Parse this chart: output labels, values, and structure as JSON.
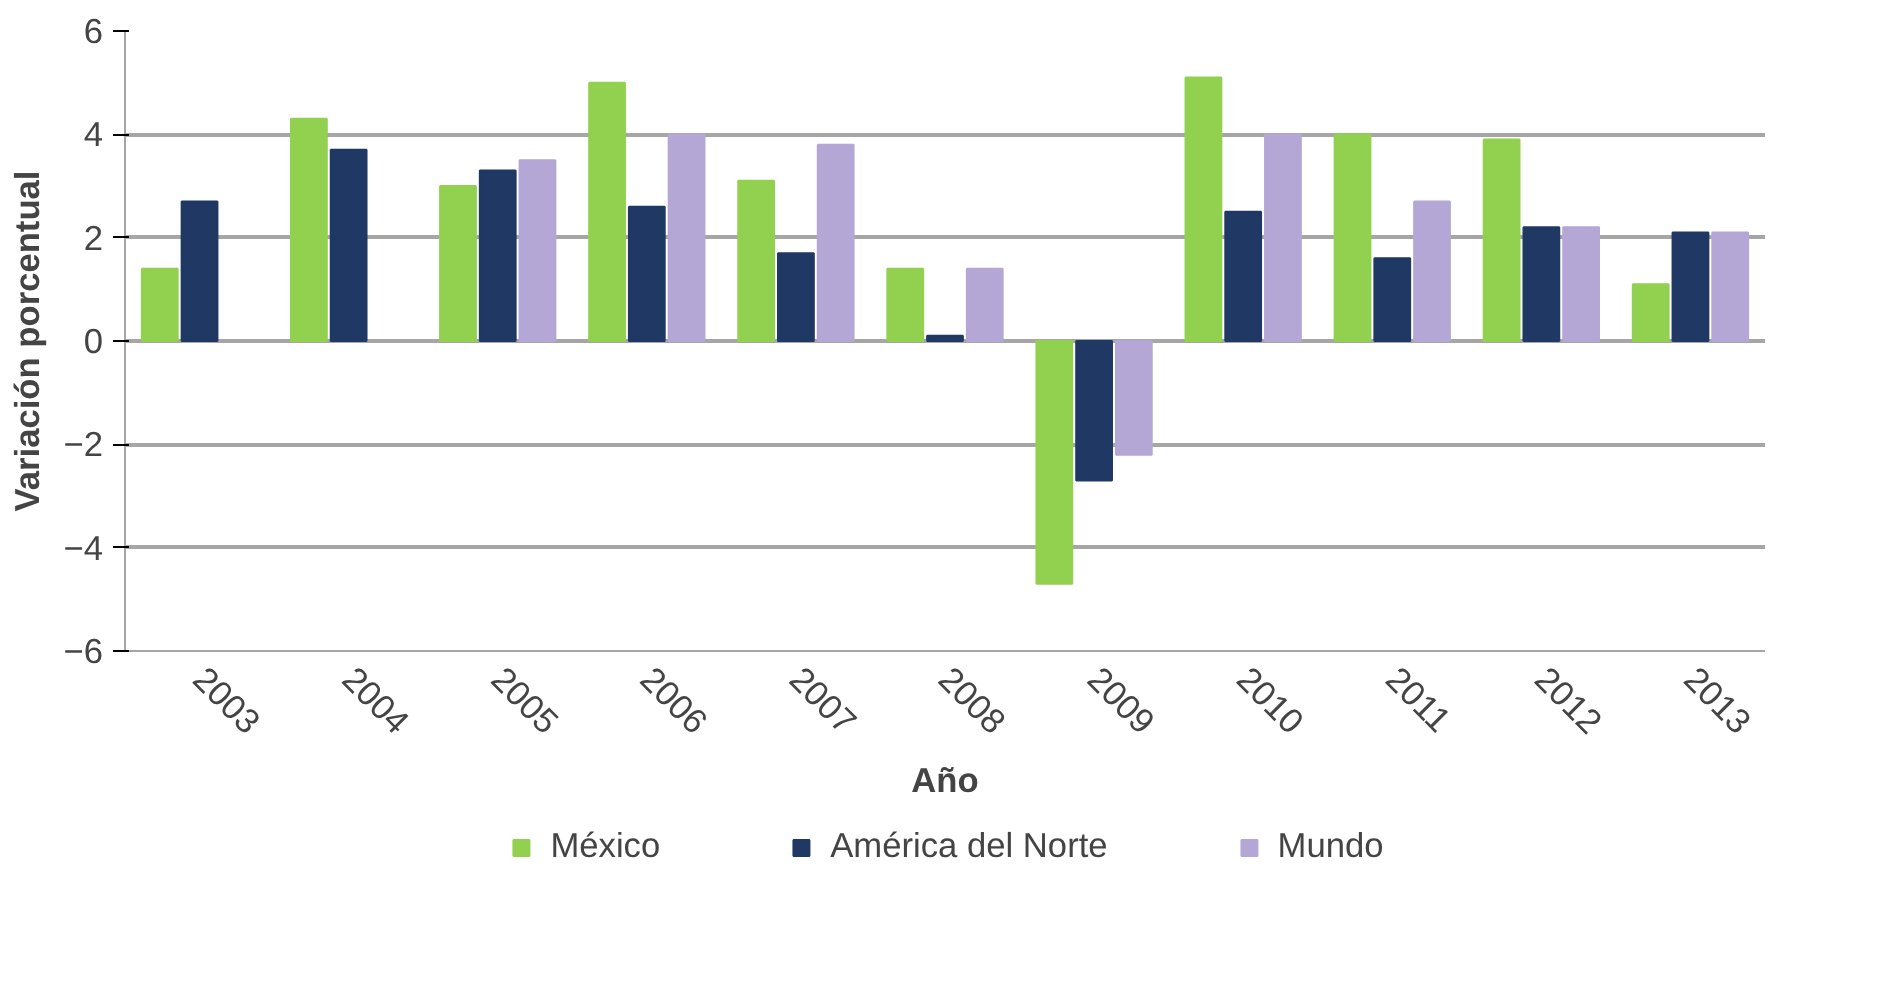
{
  "chart_data": {
    "type": "bar",
    "xlabel": "Año",
    "ylabel": "Variación porcentual",
    "categories": [
      "2003",
      "2004",
      "2005",
      "2006",
      "2007",
      "2008",
      "2009",
      "2010",
      "2011",
      "2012",
      "2013"
    ],
    "series": [
      {
        "name": "México",
        "color": "#92d050",
        "values": [
          1.4,
          4.3,
          3.0,
          5.0,
          3.1,
          1.4,
          -4.7,
          5.1,
          4.0,
          3.9,
          1.1
        ]
      },
      {
        "name": "América del Norte",
        "color": "#1f3864",
        "values": [
          2.7,
          3.7,
          3.3,
          2.6,
          1.7,
          0.1,
          -2.7,
          2.5,
          1.6,
          2.2,
          2.1
        ]
      },
      {
        "name": "Mundo",
        "color": "#b4a7d6",
        "values": [
          null,
          null,
          3.5,
          4.0,
          3.8,
          1.4,
          -2.2,
          4.0,
          2.7,
          2.2,
          2.1
        ]
      }
    ],
    "ylim": [
      -6,
      6
    ],
    "yticks": [
      -6,
      -4,
      -2,
      0,
      2,
      4,
      6
    ],
    "grid": "y",
    "legend": "bottom"
  }
}
